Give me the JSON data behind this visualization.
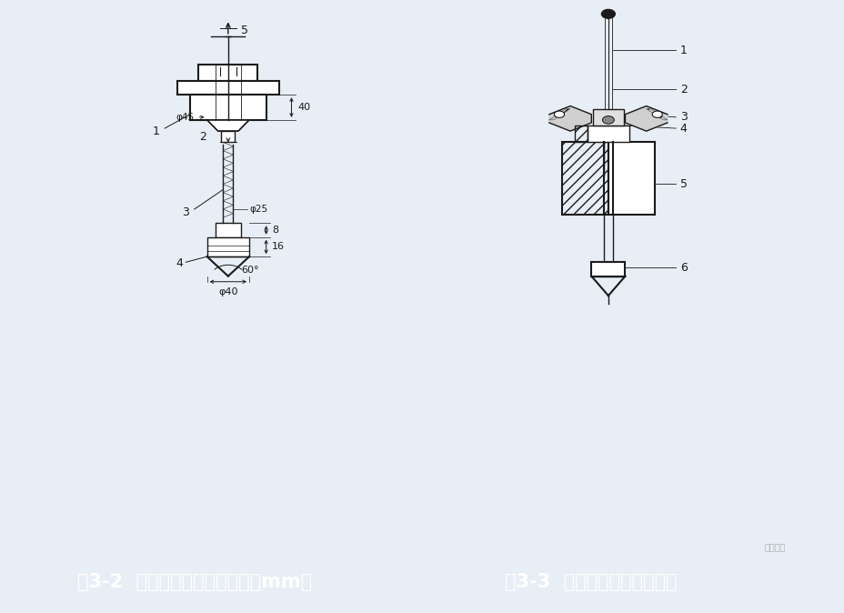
{
  "bg_color": "#f0f0f0",
  "main_bg": "#e8eef5",
  "caption_bg": "#1a3060",
  "caption_left": "图3-2  轻型动力触探仪（单位：mm）",
  "caption_right": "图3-3  偏心轮缩径式脱钩装置",
  "caption_fontsize": 15,
  "line_color": "#1a1a1a",
  "white": "#ffffff",
  "watermark": "筑龙岩土"
}
